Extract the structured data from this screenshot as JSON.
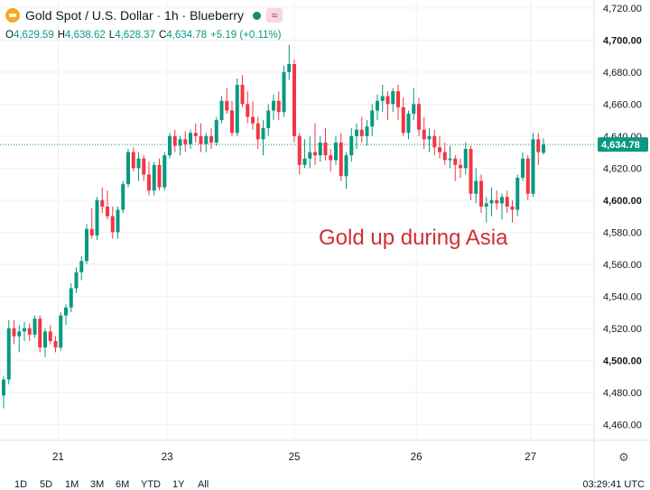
{
  "header": {
    "title": "Gold Spot / U.S. Dollar · 1h · Blueberry",
    "ohlc": {
      "o_label": "O",
      "o": "4,629.59",
      "h_label": "H",
      "h": "4,638.62",
      "l_label": "L",
      "l": "4,628.37",
      "c_label": "C",
      "c": "4,634.78",
      "change": "+5.19 (+0.11%)"
    }
  },
  "annotation": "Gold up during Asia",
  "price_badge": "4,634.78",
  "time_ranges": [
    "1D",
    "5D",
    "1M",
    "3M",
    "6M",
    "YTD",
    "1Y",
    "All"
  ],
  "clock": "03:29:41 UTC",
  "colors": {
    "up": "#089981",
    "down": "#f23645",
    "annotation": "#d32f2f",
    "grid": "#eef0f3",
    "badge": "#089981"
  },
  "chart_data": {
    "type": "candlestick",
    "title": "Gold Spot / U.S. Dollar · 1h · Blueberry",
    "x_ticks": [
      {
        "label": "21",
        "index": 10.5
      },
      {
        "label": "23",
        "index": 31.5
      },
      {
        "label": "25",
        "index": 56
      },
      {
        "label": "26",
        "index": 79.5
      },
      {
        "label": "27",
        "index": 101.5
      }
    ],
    "y_ticks": [
      4460,
      4480,
      4500,
      4520,
      4540,
      4560,
      4580,
      4600,
      4620,
      4640,
      4660,
      4680,
      4700,
      4720
    ],
    "y_bold_ticks": [
      4500,
      4600,
      4700
    ],
    "ylim": [
      4450,
      4725
    ],
    "last_price": 4634.78,
    "candles": [
      [
        4478,
        4490,
        4470,
        4488
      ],
      [
        4488,
        4525,
        4485,
        4520
      ],
      [
        4520,
        4525,
        4510,
        4515
      ],
      [
        4515,
        4522,
        4505,
        4518
      ],
      [
        4518,
        4524,
        4512,
        4520
      ],
      [
        4520,
        4523,
        4512,
        4516
      ],
      [
        4516,
        4528,
        4514,
        4526
      ],
      [
        4526,
        4528,
        4505,
        4508
      ],
      [
        4508,
        4520,
        4502,
        4518
      ],
      [
        4518,
        4522,
        4510,
        4512
      ],
      [
        4512,
        4515,
        4505,
        4508
      ],
      [
        4508,
        4530,
        4506,
        4528
      ],
      [
        4528,
        4535,
        4522,
        4533
      ],
      [
        4533,
        4548,
        4530,
        4545
      ],
      [
        4545,
        4558,
        4542,
        4555
      ],
      [
        4555,
        4565,
        4550,
        4562
      ],
      [
        4562,
        4585,
        4560,
        4582
      ],
      [
        4582,
        4595,
        4576,
        4578
      ],
      [
        4578,
        4602,
        4575,
        4600
      ],
      [
        4600,
        4608,
        4592,
        4596
      ],
      [
        4596,
        4606,
        4588,
        4590
      ],
      [
        4590,
        4596,
        4576,
        4580
      ],
      [
        4580,
        4596,
        4576,
        4594
      ],
      [
        4594,
        4612,
        4592,
        4610
      ],
      [
        4610,
        4632,
        4608,
        4630
      ],
      [
        4630,
        4633,
        4618,
        4620
      ],
      [
        4620,
        4630,
        4612,
        4626
      ],
      [
        4626,
        4628,
        4612,
        4616
      ],
      [
        4616,
        4624,
        4603,
        4606
      ],
      [
        4606,
        4624,
        4603,
        4622
      ],
      [
        4622,
        4626,
        4606,
        4608
      ],
      [
        4608,
        4630,
        4606,
        4628
      ],
      [
        4628,
        4642,
        4626,
        4640
      ],
      [
        4640,
        4644,
        4630,
        4634
      ],
      [
        4634,
        4640,
        4628,
        4638
      ],
      [
        4638,
        4643,
        4630,
        4635
      ],
      [
        4635,
        4644,
        4632,
        4642
      ],
      [
        4642,
        4648,
        4636,
        4640
      ],
      [
        4640,
        4648,
        4630,
        4635
      ],
      [
        4635,
        4642,
        4630,
        4640
      ],
      [
        4640,
        4645,
        4632,
        4636
      ],
      [
        4636,
        4652,
        4634,
        4650
      ],
      [
        4650,
        4665,
        4648,
        4662
      ],
      [
        4662,
        4670,
        4654,
        4656
      ],
      [
        4656,
        4662,
        4640,
        4642
      ],
      [
        4642,
        4676,
        4640,
        4672
      ],
      [
        4672,
        4678,
        4658,
        4660
      ],
      [
        4660,
        4668,
        4648,
        4652
      ],
      [
        4652,
        4662,
        4644,
        4648
      ],
      [
        4648,
        4652,
        4632,
        4638
      ],
      [
        4638,
        4650,
        4628,
        4645
      ],
      [
        4645,
        4660,
        4640,
        4656
      ],
      [
        4656,
        4666,
        4650,
        4662
      ],
      [
        4662,
        4668,
        4650,
        4655
      ],
      [
        4655,
        4684,
        4652,
        4680
      ],
      [
        4680,
        4697,
        4675,
        4685
      ],
      [
        4685,
        4688,
        4636,
        4640
      ],
      [
        4640,
        4642,
        4616,
        4622
      ],
      [
        4622,
        4638,
        4620,
        4626
      ],
      [
        4626,
        4640,
        4620,
        4630
      ],
      [
        4630,
        4648,
        4622,
        4628
      ],
      [
        4628,
        4640,
        4624,
        4636
      ],
      [
        4636,
        4645,
        4625,
        4628
      ],
      [
        4628,
        4632,
        4618,
        4625
      ],
      [
        4625,
        4640,
        4622,
        4636
      ],
      [
        4636,
        4642,
        4612,
        4615
      ],
      [
        4615,
        4630,
        4607,
        4628
      ],
      [
        4628,
        4645,
        4624,
        4640
      ],
      [
        4640,
        4648,
        4632,
        4644
      ],
      [
        4644,
        4652,
        4636,
        4640
      ],
      [
        4640,
        4650,
        4634,
        4646
      ],
      [
        4646,
        4660,
        4640,
        4656
      ],
      [
        4656,
        4666,
        4650,
        4662
      ],
      [
        4662,
        4672,
        4655,
        4665
      ],
      [
        4665,
        4668,
        4650,
        4660
      ],
      [
        4660,
        4670,
        4655,
        4668
      ],
      [
        4668,
        4672,
        4650,
        4658
      ],
      [
        4658,
        4664,
        4640,
        4642
      ],
      [
        4642,
        4656,
        4638,
        4654
      ],
      [
        4654,
        4670,
        4650,
        4660
      ],
      [
        4660,
        4664,
        4640,
        4644
      ],
      [
        4644,
        4652,
        4632,
        4638
      ],
      [
        4638,
        4645,
        4630,
        4640
      ],
      [
        4640,
        4644,
        4628,
        4633
      ],
      [
        4633,
        4640,
        4626,
        4630
      ],
      [
        4630,
        4636,
        4622,
        4625
      ],
      [
        4625,
        4634,
        4620,
        4626
      ],
      [
        4626,
        4628,
        4612,
        4622
      ],
      [
        4622,
        4626,
        4614,
        4620
      ],
      [
        4620,
        4636,
        4616,
        4632
      ],
      [
        4632,
        4634,
        4600,
        4604
      ],
      [
        4604,
        4620,
        4598,
        4612
      ],
      [
        4612,
        4616,
        4592,
        4596
      ],
      [
        4596,
        4602,
        4586,
        4598
      ],
      [
        4598,
        4608,
        4590,
        4600
      ],
      [
        4600,
        4606,
        4594,
        4598
      ],
      [
        4598,
        4604,
        4588,
        4602
      ],
      [
        4602,
        4606,
        4592,
        4596
      ],
      [
        4596,
        4600,
        4586,
        4594
      ],
      [
        4594,
        4616,
        4590,
        4614
      ],
      [
        4614,
        4630,
        4612,
        4626
      ],
      [
        4626,
        4628,
        4600,
        4604
      ],
      [
        4604,
        4642,
        4602,
        4638
      ],
      [
        4638,
        4642,
        4622,
        4630
      ],
      [
        4629.59,
        4638.62,
        4628.37,
        4634.78
      ]
    ]
  }
}
